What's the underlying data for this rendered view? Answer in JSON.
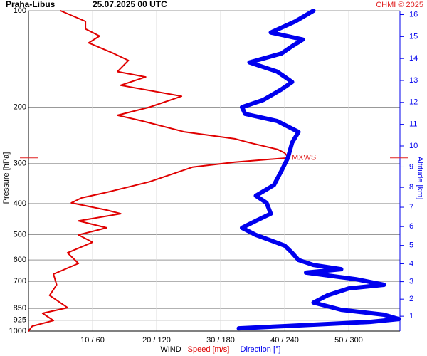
{
  "chart_data": {
    "type": "line",
    "station": "Praha-Libus",
    "title": "25.07.2025 00 UTC",
    "credit": "CHMI © 2025",
    "ylabel": "Pressure [hPa]",
    "y2label": "Altitude [km]",
    "xlabel": "WIND",
    "log_y": true,
    "grid": true,
    "ylim": [
      100,
      1000
    ],
    "yticks": [
      100,
      200,
      300,
      400,
      500,
      600,
      700,
      850,
      925,
      1000
    ],
    "y2ticks": [
      1,
      2,
      3,
      4,
      5,
      6,
      7,
      8,
      9,
      10,
      11,
      12,
      13,
      14,
      15,
      16
    ],
    "xlim": [
      0,
      58
    ],
    "x2lim": [
      0,
      348
    ],
    "xticks": [
      {
        "value": 10,
        "label": "10 / 60"
      },
      {
        "value": 20,
        "label": "20 / 120"
      },
      {
        "value": 30,
        "label": "30 / 180"
      },
      {
        "value": 40,
        "label": "40 / 240"
      },
      {
        "value": 50,
        "label": "50 / 300"
      }
    ],
    "annotation": {
      "text": "MXWS",
      "pressure": 288,
      "color": "#e02020"
    },
    "series": [
      {
        "name": "Speed [m/s]",
        "color": "#e00000",
        "width": 2,
        "pressure": [
          100,
          108,
          114,
          120,
          126,
          136,
          143,
          155,
          161,
          171,
          185,
          200,
          212,
          221,
          239,
          251,
          258,
          271,
          278,
          288,
          297,
          308,
          342,
          369,
          384,
          398,
          419,
          430,
          453,
          476,
          501,
          528,
          570,
          615,
          664,
          717,
          774,
          845,
          880,
          927,
          965,
          1000
        ],
        "values": [
          5,
          8.9,
          8.9,
          11.1,
          9.4,
          13.3,
          15.6,
          13.9,
          18.3,
          14.4,
          23.9,
          18.9,
          13.9,
          17.8,
          24.4,
          32.2,
          34.4,
          38.9,
          40,
          40.6,
          32.2,
          25.6,
          18.9,
          12.2,
          8.3,
          6.7,
          12.2,
          14.4,
          7.8,
          12.2,
          7.8,
          10,
          6.1,
          7.8,
          3.9,
          4.4,
          3.3,
          6.1,
          2.2,
          3.9,
          0.6,
          0
        ]
      },
      {
        "name": "Direction [°]",
        "color": "#0000ee",
        "width": 6,
        "axis": "x2",
        "pressure": [
          100,
          108,
          117,
          123,
          129,
          136,
          145,
          155,
          167,
          176,
          190,
          200,
          210,
          221,
          239,
          258,
          288,
          316,
          350,
          378,
          398,
          430,
          453,
          476,
          501,
          541,
          570,
          600,
          622,
          641,
          657,
          689,
          717,
          736,
          774,
          815,
          858,
          889,
          917,
          936,
          965,
          980
        ],
        "values": [
          267,
          250,
          227,
          257,
          247,
          237,
          207,
          233,
          247,
          237,
          220,
          200,
          203,
          233,
          253,
          247,
          243,
          237,
          230,
          213,
          223,
          227,
          213,
          200,
          213,
          240,
          247,
          253,
          267,
          293,
          260,
          307,
          333,
          300,
          280,
          267,
          293,
          333,
          347,
          320,
          240,
          197
        ]
      }
    ]
  }
}
